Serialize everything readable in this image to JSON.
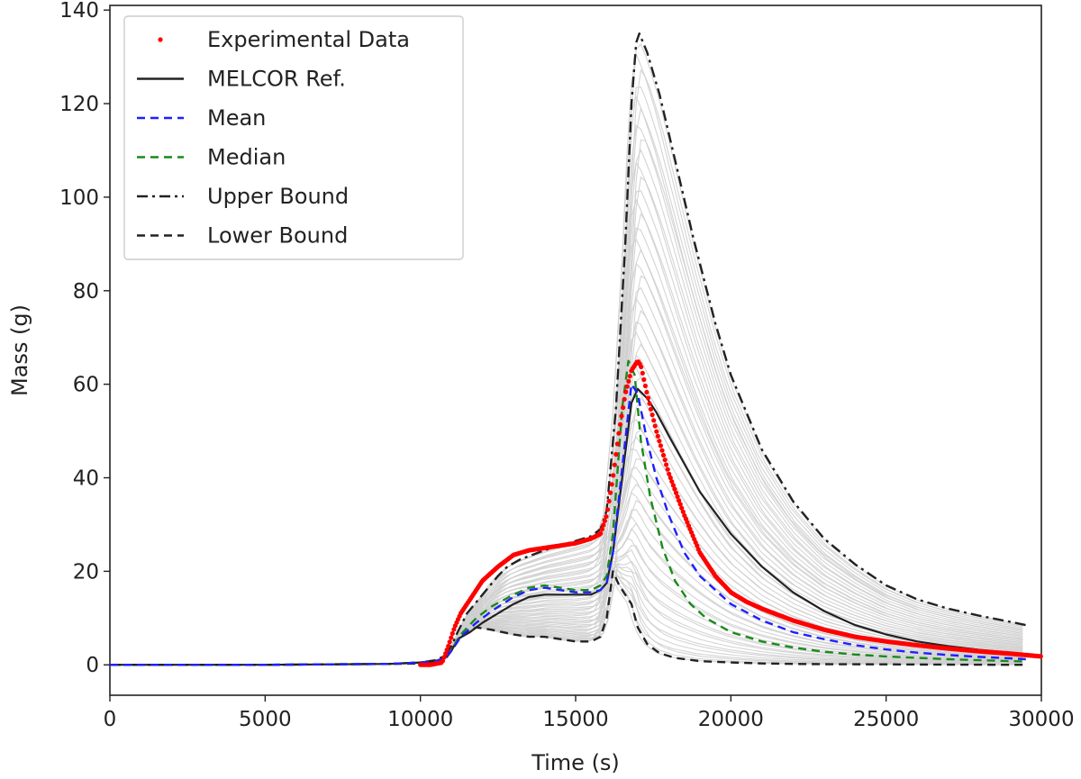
{
  "chart_data": {
    "type": "line",
    "title": "",
    "xlabel": "Time (s)",
    "ylabel": "Mass (g)",
    "xlim": [
      0,
      30000
    ],
    "ylim": [
      -6.5,
      141
    ],
    "xticks": [
      0,
      5000,
      10000,
      15000,
      20000,
      25000,
      30000
    ],
    "yticks": [
      0,
      20,
      40,
      60,
      80,
      100,
      120,
      140
    ],
    "grid": false,
    "legend_position": "top-left",
    "colors": {
      "experimental": "#ff0000",
      "melcor": "#222222",
      "mean": "#1f1fff",
      "median": "#1a8a1a",
      "bounds": "#222222",
      "samples": "#cfcfcf"
    },
    "legend": [
      {
        "label": "Experimental Data",
        "style": "dot",
        "color": "#ff0000"
      },
      {
        "label": "MELCOR Ref.",
        "style": "solid",
        "color": "#222222"
      },
      {
        "label": "Mean",
        "style": "dashed",
        "color": "#1f1fff"
      },
      {
        "label": "Median",
        "style": "dashed",
        "color": "#1a8a1a"
      },
      {
        "label": "Upper Bound",
        "style": "dashdot",
        "color": "#222222"
      },
      {
        "label": "Lower Bound",
        "style": "dashed",
        "color": "#222222"
      }
    ],
    "series": [
      {
        "name": "Experimental Data",
        "kind": "dots",
        "x": [
          10000,
          10300,
          10700,
          10900,
          11100,
          11300,
          11600,
          12000,
          12500,
          13000,
          13500,
          14000,
          14500,
          15000,
          15500,
          15800,
          16000,
          16200,
          16400,
          16600,
          16800,
          17000,
          17100,
          17300,
          17600,
          18000,
          18500,
          19000,
          19500,
          20000,
          20500,
          21000,
          22000,
          23000,
          24000,
          25000,
          26000,
          27000,
          28000,
          29000,
          29500,
          30000
        ],
        "y": [
          0,
          0,
          0.5,
          4,
          8,
          11,
          14,
          18,
          21,
          23.5,
          24.5,
          25,
          25.5,
          26,
          27,
          28,
          32,
          40,
          50,
          58,
          63,
          65,
          64,
          58,
          50,
          41,
          32,
          24,
          19,
          15.5,
          13.5,
          12,
          9.5,
          7.5,
          6,
          5,
          4.2,
          3.5,
          2.9,
          2.4,
          2.1,
          1.8
        ]
      },
      {
        "name": "MELCOR Ref.",
        "kind": "solid",
        "x": [
          0,
          5000,
          9000,
          10000,
          10500,
          10800,
          11000,
          11200,
          11600,
          12000,
          12500,
          13000,
          13500,
          14000,
          14500,
          15000,
          15500,
          15800,
          16000,
          16200,
          16500,
          16800,
          17000,
          17300,
          17600,
          18000,
          18500,
          19000,
          20000,
          21000,
          22000,
          23000,
          24000,
          25000,
          26000,
          27000,
          28000,
          29000,
          29500
        ],
        "y": [
          0,
          0,
          0.2,
          0.5,
          0.8,
          1.5,
          3,
          5.5,
          7,
          9,
          11,
          13,
          14.5,
          15,
          15,
          15,
          15,
          16,
          17.5,
          24,
          40,
          56,
          59,
          57,
          54,
          49,
          43,
          37,
          28,
          21,
          15.5,
          11.5,
          8.5,
          6.5,
          5,
          4,
          3.2,
          2.6,
          2.3
        ]
      },
      {
        "name": "Mean",
        "kind": "dashed",
        "x": [
          0,
          5000,
          9000,
          10000,
          10500,
          10800,
          11000,
          11300,
          11800,
          12300,
          13000,
          13500,
          14000,
          14500,
          15000,
          15500,
          15800,
          16000,
          16200,
          16500,
          16800,
          17000,
          17300,
          17600,
          18000,
          18500,
          19000,
          20000,
          21000,
          22000,
          23000,
          24000,
          25000,
          26000,
          27000,
          28000,
          29000,
          29500
        ],
        "y": [
          0,
          0,
          0.2,
          0.5,
          0.8,
          1.5,
          3,
          6,
          9,
          11.5,
          14.5,
          16,
          16.5,
          16,
          15.5,
          15.5,
          16,
          17.5,
          24,
          42,
          60,
          58,
          48,
          40,
          32,
          24,
          19,
          13,
          9.5,
          7,
          5.5,
          4.2,
          3.3,
          2.6,
          2.1,
          1.7,
          1.4,
          1.2
        ]
      },
      {
        "name": "Median",
        "kind": "dashed",
        "x": [
          0,
          5000,
          9000,
          10000,
          10500,
          10800,
          11000,
          11300,
          11800,
          12300,
          13000,
          13500,
          14000,
          14500,
          15000,
          15500,
          15800,
          16000,
          16200,
          16500,
          16700,
          16900,
          17100,
          17400,
          17800,
          18200,
          18700,
          19200,
          20000,
          21000,
          22000,
          23000,
          24000,
          25000,
          26000,
          27000,
          28000,
          29000,
          29500
        ],
        "y": [
          0,
          0,
          0.2,
          0.5,
          0.8,
          1.5,
          3,
          6.5,
          10,
          12.5,
          15,
          16.5,
          17,
          16.5,
          16,
          16,
          17,
          19,
          28,
          55,
          65,
          62,
          48,
          36,
          25,
          18,
          13,
          10,
          7,
          5,
          3.7,
          2.8,
          2.2,
          1.8,
          1.5,
          1.2,
          1,
          0.8,
          0.7
        ]
      },
      {
        "name": "Upper Bound",
        "kind": "dashdot",
        "x": [
          0,
          5000,
          9000,
          10000,
          10500,
          10800,
          11000,
          11200,
          11500,
          12000,
          12500,
          12800,
          13200,
          13600,
          14000,
          14500,
          15000,
          15500,
          15800,
          16000,
          16300,
          16600,
          16800,
          16950,
          17050,
          17300,
          17700,
          18200,
          18800,
          19500,
          20000,
          21000,
          22000,
          23000,
          24000,
          25000,
          26000,
          27000,
          28000,
          29000,
          29500
        ],
        "y": [
          0,
          0,
          0.2,
          0.5,
          1,
          2,
          4,
          7,
          11,
          15,
          19,
          21,
          22.5,
          23.5,
          24.5,
          25.5,
          26.5,
          27.5,
          29,
          33,
          55,
          90,
          120,
          133,
          135,
          131,
          122,
          108,
          91,
          73,
          62,
          46,
          35,
          27,
          21.5,
          17,
          14,
          12,
          10.5,
          9.2,
          8.5
        ]
      },
      {
        "name": "Lower Bound",
        "kind": "dashed",
        "x": [
          0,
          5000,
          9000,
          10000,
          10500,
          10800,
          11000,
          11300,
          11800,
          12300,
          13000,
          13500,
          14000,
          14500,
          15000,
          15500,
          15800,
          16000,
          16200,
          16400,
          16600,
          16800,
          17000,
          17300,
          17700,
          18200,
          19000,
          20000,
          21000,
          22000,
          23000,
          25000,
          27000,
          29000,
          29500
        ],
        "y": [
          0,
          0,
          0.2,
          0.3,
          0.6,
          1.2,
          3,
          6,
          8,
          7.5,
          6.5,
          6,
          6,
          5.5,
          5,
          5,
          6,
          10,
          20,
          17,
          15,
          13,
          8,
          4.5,
          2.5,
          1.5,
          0.8,
          0.5,
          0.3,
          0.2,
          0.15,
          0.1,
          0.05,
          0,
          0
        ]
      }
    ],
    "sample_band": {
      "name": "Samples",
      "count": 60,
      "lower": "Lower Bound",
      "upper": "Upper Bound",
      "color": "#cfcfcf"
    }
  }
}
